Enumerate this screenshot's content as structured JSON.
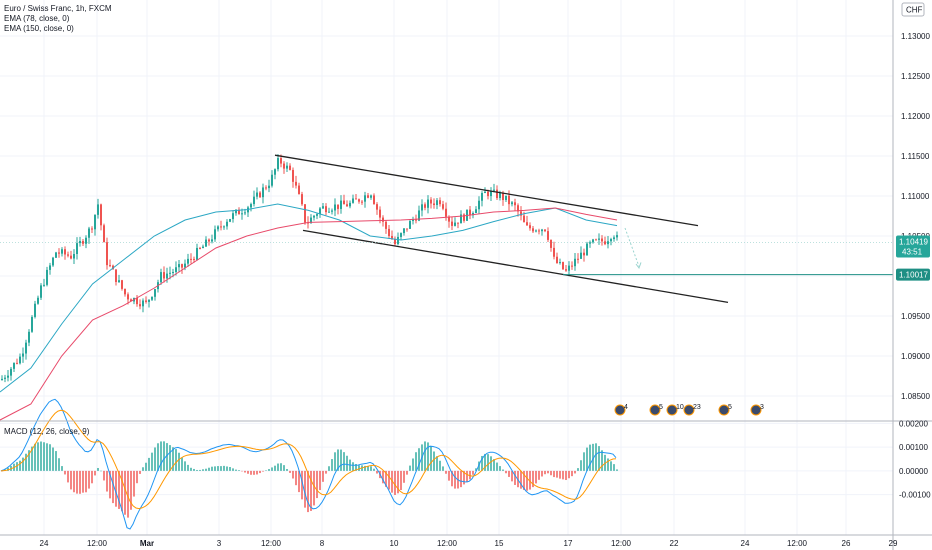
{
  "header": {
    "symbol_line": "Euro / Swiss Franc, 1h, FXCM",
    "ema1": "EMA (78, close, 0)",
    "ema2": "EMA (150, close, 0)",
    "currency": "CHF"
  },
  "macd": {
    "label": "MACD (12, 26, close, 9)"
  },
  "colors": {
    "up": "#26a69a",
    "down": "#ef5350",
    "ema78": "#2ba7c4",
    "ema150": "#e84a6a",
    "macd_line": "#2196f3",
    "signal_line": "#ff9800",
    "channel": "#222222",
    "target_line": "#1e8f84"
  },
  "price_labels": {
    "current": "1.10419",
    "countdown": "43:51",
    "target": "1.10017"
  },
  "events": [
    {
      "label": "4"
    },
    {
      "label": "5"
    },
    {
      "label": "10"
    },
    {
      "label": "23"
    },
    {
      "label": "5"
    },
    {
      "label": "3"
    }
  ],
  "chart_data": [
    {
      "type": "candlestick",
      "title": "Euro / Swiss Franc, 1h, FXCM",
      "y_ticks": [
        "1.13000",
        "1.12500",
        "1.12000",
        "1.11500",
        "1.11000",
        "1.10500",
        "1.10000",
        "1.09500",
        "1.09000",
        "1.08500"
      ],
      "ylim": [
        1.082,
        1.1345
      ],
      "x_ticks": [
        "24",
        "12:00",
        "Mar",
        "3",
        "12:00",
        "8",
        "10",
        "12:00",
        "15",
        "17",
        "12:00",
        "22",
        "24",
        "12:00",
        "26",
        "29"
      ],
      "series": [
        {
          "name": "EMA (78, close, 0)",
          "points": [
            [
              0,
              1.0855
            ],
            [
              0.05,
              1.0885
            ],
            [
              0.1,
              1.094
            ],
            [
              0.15,
              1.099
            ],
            [
              0.2,
              1.102
            ],
            [
              0.25,
              1.105
            ],
            [
              0.3,
              1.107
            ],
            [
              0.35,
              1.108
            ],
            [
              0.4,
              1.1083
            ],
            [
              0.45,
              1.109
            ],
            [
              0.5,
              1.1082
            ],
            [
              0.55,
              1.107
            ],
            [
              0.6,
              1.105
            ],
            [
              0.65,
              1.1045
            ],
            [
              0.7,
              1.105
            ],
            [
              0.75,
              1.1057
            ],
            [
              0.8,
              1.1068
            ],
            [
              0.85,
              1.1078
            ],
            [
              0.9,
              1.1085
            ],
            [
              0.95,
              1.107
            ],
            [
              1.0,
              1.1063
            ]
          ]
        },
        {
          "name": "EMA (150, close, 0)",
          "points": [
            [
              0,
              1.082
            ],
            [
              0.05,
              1.084
            ],
            [
              0.1,
              1.09
            ],
            [
              0.15,
              1.0945
            ],
            [
              0.2,
              1.0963
            ],
            [
              0.25,
              1.0985
            ],
            [
              0.3,
              1.101
            ],
            [
              0.35,
              1.1035
            ],
            [
              0.4,
              1.105
            ],
            [
              0.45,
              1.106
            ],
            [
              0.5,
              1.1067
            ],
            [
              0.55,
              1.1068
            ],
            [
              0.6,
              1.1069
            ],
            [
              0.65,
              1.107
            ],
            [
              0.7,
              1.1072
            ],
            [
              0.75,
              1.1075
            ],
            [
              0.8,
              1.108
            ],
            [
              0.85,
              1.1082
            ],
            [
              0.9,
              1.1085
            ],
            [
              0.95,
              1.1077
            ],
            [
              1.0,
              1.107
            ]
          ]
        }
      ],
      "annotations": [
        {
          "type": "trend_line",
          "from": [
            "12:00 (Mar 3)",
            1.1151
          ],
          "to": [
            "22",
            1.1063
          ]
        },
        {
          "type": "trend_line",
          "from": [
            "8",
            1.1057
          ],
          "to": [
            "24",
            1.0967
          ]
        },
        {
          "type": "horizontal_line",
          "value": 1.10017
        },
        {
          "type": "projection_arrow",
          "direction": "down"
        }
      ],
      "last_price": 1.10419
    },
    {
      "type": "macd",
      "title": "MACD (12, 26, close, 9)",
      "y_ticks": [
        "0.00200",
        "0.00100",
        "0.00000",
        "-0.00100"
      ],
      "ylim": [
        -0.0027,
        0.0021
      ]
    }
  ]
}
